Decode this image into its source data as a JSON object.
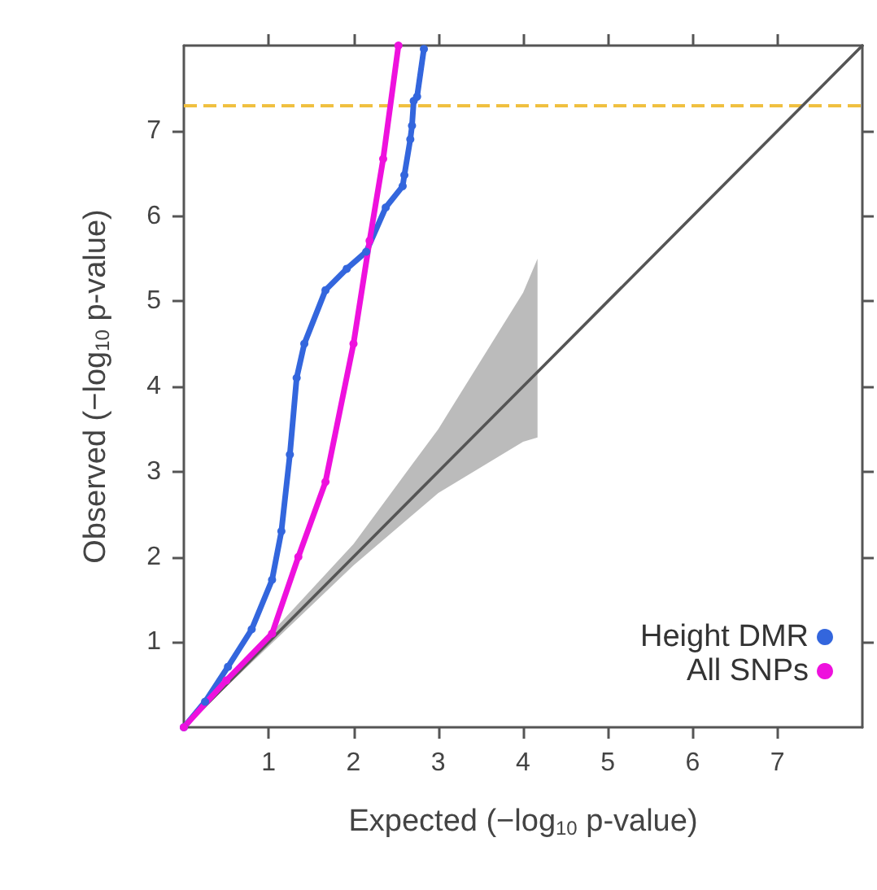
{
  "chart_data": {
    "type": "line",
    "xlabel": "Expected (−log$_{10}$ p-value)",
    "ylabel": "Observed (−log$_{10}$ p-value)",
    "xlim": [
      0,
      8
    ],
    "ylim": [
      0,
      8
    ],
    "xticks": [
      1,
      2,
      3,
      4,
      5,
      6,
      7
    ],
    "yticks": [
      1,
      2,
      3,
      4,
      5,
      6,
      7
    ],
    "legend": "bottom right",
    "marker": "circle",
    "line_style": "solid",
    "series": [
      {
        "type": "line",
        "color": "#555555",
        "marker": "none",
        "x": [
          0,
          2,
          3,
          4,
          4.17,
          8
        ],
        "values": [
          0,
          2,
          3,
          4,
          4.17,
          8
        ],
        "lower": [
          0,
          1.9,
          2.75,
          3.35,
          3.4,
          null
        ],
        "upper": [
          0,
          2.15,
          3.5,
          5.1,
          5.5,
          null
        ]
      },
      {
        "name": "Height DMR",
        "color": "#3366dd",
        "x": [
          0,
          0.25,
          0.52,
          0.8,
          1.04,
          1.15,
          1.25,
          1.33,
          1.42,
          1.67,
          1.92,
          2.15,
          2.38,
          2.58,
          2.6,
          2.67,
          2.69,
          2.71,
          2.75,
          2.83
        ],
        "values": [
          0,
          0.3,
          0.71,
          1.15,
          1.73,
          2.3,
          3.2,
          4.1,
          4.5,
          5.13,
          5.38,
          5.58,
          6.1,
          6.35,
          6.48,
          6.9,
          7.06,
          7.35,
          7.4,
          7.96
        ]
      },
      {
        "name": "All SNPs",
        "color": "#ee11dd",
        "x": [
          0,
          0.5,
          1.04,
          1.35,
          1.67,
          2.0,
          2.19,
          2.35,
          2.53
        ],
        "values": [
          0,
          0.55,
          1.1,
          2.0,
          2.88,
          4.5,
          5.71,
          6.67,
          8.0
        ]
      }
    ],
    "ref_lines": [
      {
        "axis": "y",
        "value": 7.3,
        "color": "#f0c040",
        "line_style": "dashed"
      }
    ]
  }
}
